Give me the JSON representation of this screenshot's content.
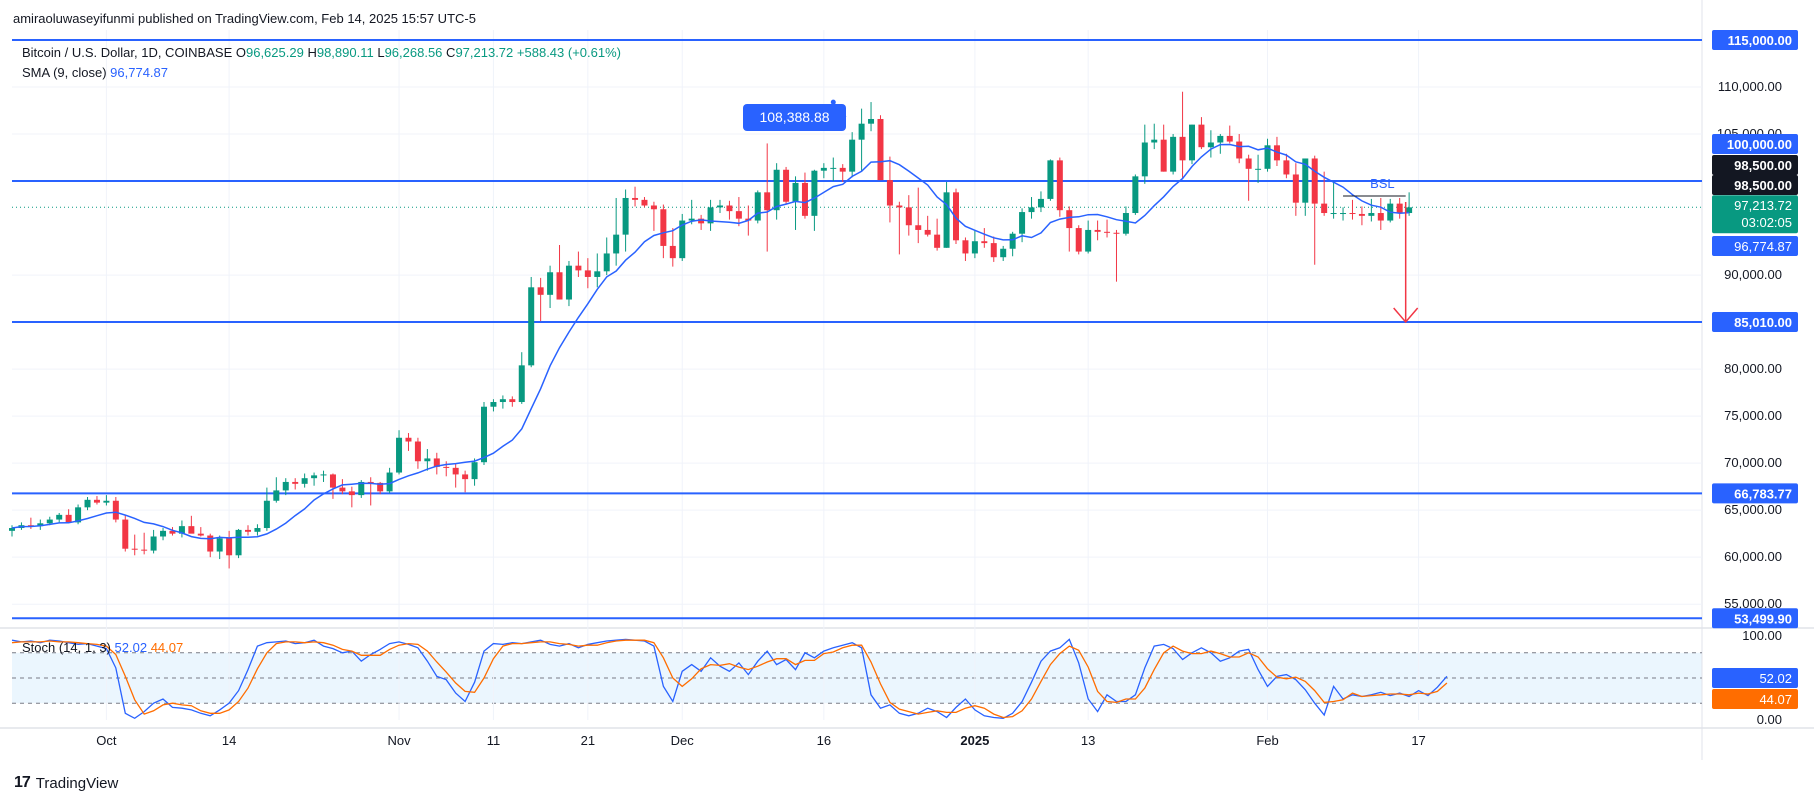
{
  "publisher": "amiraoluwaseyifunmi published on TradingView.com, Feb 14, 2025 15:57 UTC-5",
  "symbol": {
    "name": "Bitcoin / U.S. Dollar, 1D, COINBASE",
    "open_label": "O",
    "open": "96,625.29",
    "high_label": "H",
    "high": "98,890.11",
    "low_label": "L",
    "low": "96,268.56",
    "close_label": "C",
    "close": "97,213.72",
    "change": "+588.43 (+0.61%)"
  },
  "sma": {
    "label": "SMA (9, close)",
    "value": "96,774.87"
  },
  "stoch": {
    "label": "Stoch (14, 1, 3)",
    "k": "52.02",
    "d": "44.07"
  },
  "footer": {
    "brand": "TradingView"
  },
  "colors": {
    "up": "#089981",
    "down": "#f23645",
    "level": "#2962ff",
    "sma": "#2962ff",
    "stoch_k": "#2962ff",
    "stoch_d": "#ff6d00",
    "arrow": "#f23645"
  },
  "chart_data": {
    "type": "candlestick",
    "title": "Bitcoin / U.S. Dollar, 1D, COINBASE",
    "y_ticks": [
      "110,000.00",
      "105,000.00",
      "90,000.00",
      "80,000.00",
      "75,000.00",
      "70,000.00",
      "65,000.00",
      "60,000.00",
      "55,000.00"
    ],
    "x_ticks": [
      {
        "label": "Oct",
        "date": "2024-10-01"
      },
      {
        "label": "14",
        "date": "2024-10-14"
      },
      {
        "label": "Nov",
        "date": "2024-11-01"
      },
      {
        "label": "11",
        "date": "2024-11-11"
      },
      {
        "label": "21",
        "date": "2024-11-21"
      },
      {
        "label": "Dec",
        "date": "2024-12-01"
      },
      {
        "label": "16",
        "date": "2024-12-16"
      },
      {
        "label": "2025",
        "date": "2025-01-01"
      },
      {
        "label": "13",
        "date": "2025-01-13"
      },
      {
        "label": "Feb",
        "date": "2025-02-01"
      },
      {
        "label": "17",
        "date": "2025-02-17"
      }
    ],
    "levels": [
      {
        "value": 115000,
        "label": "115,000.00"
      },
      {
        "value": 100000,
        "label": "100,000.00"
      },
      {
        "value": 98500,
        "label": "98,500.00"
      },
      {
        "value": 85010,
        "label": "85,010.00"
      },
      {
        "value": 66783.77,
        "label": "66,783.77"
      },
      {
        "value": 53499.9,
        "label": "53,499.90"
      }
    ],
    "price_labels": [
      {
        "text": "97,213.72",
        "sub": "03:02:05",
        "value": 97213.72,
        "kind": "price"
      },
      {
        "text": "96,774.87",
        "value": 96774.87,
        "kind": "sma"
      }
    ],
    "annotations": {
      "peak_label": "108,388.88",
      "peak_value": 108388.88,
      "peak_date": "2024-12-17",
      "bsl_label": "BSL",
      "bsl_value": 98000,
      "bsl_from": "2025-02-09",
      "bsl_to": "2025-02-15",
      "target_value": 85010,
      "target_date": "2025-02-15"
    },
    "candles": [
      [
        62800,
        63400,
        62200,
        63100
      ],
      [
        63100,
        63700,
        62900,
        63400
      ],
      [
        63400,
        64200,
        63000,
        63300
      ],
      [
        63300,
        64000,
        62900,
        63600
      ],
      [
        63600,
        64300,
        63400,
        64000
      ],
      [
        64000,
        64700,
        63600,
        64500
      ],
      [
        64500,
        65100,
        64000,
        63700
      ],
      [
        63700,
        65600,
        63500,
        65300
      ],
      [
        65300,
        66400,
        65000,
        66100
      ],
      [
        66100,
        66500,
        65600,
        65800
      ],
      [
        65800,
        66600,
        65500,
        66000
      ],
      [
        66000,
        66400,
        63700,
        64000
      ],
      [
        64000,
        64500,
        60600,
        60900
      ],
      [
        60900,
        62400,
        60200,
        60800
      ],
      [
        60800,
        62600,
        60300,
        60700
      ],
      [
        60700,
        62900,
        60400,
        62200
      ],
      [
        62200,
        63100,
        61800,
        62800
      ],
      [
        62800,
        63200,
        62300,
        62500
      ],
      [
        62500,
        63900,
        62100,
        63300
      ],
      [
        63300,
        64400,
        62800,
        62500
      ],
      [
        62500,
        63200,
        62200,
        62300
      ],
      [
        62300,
        62500,
        60000,
        60600
      ],
      [
        60600,
        62300,
        59800,
        62000
      ],
      [
        62000,
        62800,
        58800,
        60200
      ],
      [
        60200,
        63000,
        59900,
        62900
      ],
      [
        62900,
        63400,
        62300,
        62700
      ],
      [
        62700,
        63500,
        62300,
        63100
      ],
      [
        63100,
        67400,
        62800,
        66000
      ],
      [
        66000,
        68500,
        65800,
        67100
      ],
      [
        67100,
        68400,
        66600,
        68000
      ],
      [
        68000,
        68400,
        67200,
        67800
      ],
      [
        67800,
        68900,
        67400,
        68400
      ],
      [
        68400,
        69000,
        67600,
        68700
      ],
      [
        68700,
        69200,
        68000,
        68800
      ],
      [
        68800,
        68900,
        66200,
        67400
      ],
      [
        67400,
        68300,
        66700,
        67000
      ],
      [
        67000,
        67500,
        65300,
        66600
      ],
      [
        66600,
        68200,
        66300,
        68000
      ],
      [
        68000,
        68500,
        65500,
        67900
      ],
      [
        67900,
        68000,
        66700,
        67000
      ],
      [
        67000,
        69500,
        66800,
        69000
      ],
      [
        69000,
        73500,
        68800,
        72700
      ],
      [
        72700,
        73200,
        71300,
        72300
      ],
      [
        72300,
        72700,
        69400,
        70200
      ],
      [
        70200,
        71500,
        69200,
        70500
      ],
      [
        70500,
        71100,
        68800,
        69600
      ],
      [
        69600,
        70200,
        68600,
        69500
      ],
      [
        69500,
        70000,
        67400,
        68800
      ],
      [
        68800,
        69200,
        66900,
        68300
      ],
      [
        68300,
        70500,
        67600,
        70100
      ],
      [
        70100,
        76500,
        69800,
        76000
      ],
      [
        76000,
        76800,
        75500,
        76500
      ],
      [
        76500,
        77200,
        75800,
        76800
      ],
      [
        76800,
        77100,
        76000,
        76500
      ],
      [
        76500,
        81800,
        76300,
        80400
      ],
      [
        80400,
        89800,
        80200,
        88700
      ],
      [
        88700,
        89700,
        85100,
        87900
      ],
      [
        87900,
        91000,
        86500,
        90300
      ],
      [
        90300,
        93200,
        87400,
        87400
      ],
      [
        87400,
        91500,
        86700,
        91000
      ],
      [
        91000,
        92500,
        89800,
        90500
      ],
      [
        90500,
        91800,
        88600,
        89800
      ],
      [
        89800,
        92300,
        88700,
        90400
      ],
      [
        90400,
        94000,
        90000,
        92300
      ],
      [
        92300,
        98200,
        91000,
        94300
      ],
      [
        94300,
        99100,
        92500,
        98200
      ],
      [
        98200,
        99400,
        97300,
        98000
      ],
      [
        98000,
        98300,
        97200,
        97400
      ],
      [
        97400,
        97800,
        94700,
        97000
      ],
      [
        97000,
        97500,
        91800,
        93100
      ],
      [
        93100,
        95000,
        90900,
        91800
      ],
      [
        91800,
        96500,
        91500,
        95800
      ],
      [
        95800,
        98000,
        95400,
        96000
      ],
      [
        96000,
        96400,
        94800,
        95500
      ],
      [
        95500,
        98000,
        94700,
        97200
      ],
      [
        97200,
        98000,
        96600,
        97400
      ],
      [
        97400,
        97900,
        95900,
        96800
      ],
      [
        96800,
        98300,
        95200,
        96000
      ],
      [
        96000,
        97400,
        94200,
        95800
      ],
      [
        95800,
        99000,
        95500,
        98800
      ],
      [
        98800,
        104000,
        92500,
        96900
      ],
      [
        96900,
        101900,
        95900,
        101200
      ],
      [
        101200,
        101500,
        97500,
        97800
      ],
      [
        97800,
        100500,
        94800,
        99800
      ],
      [
        99800,
        100900,
        96000,
        96300
      ],
      [
        96300,
        101200,
        94700,
        101100
      ],
      [
        101100,
        101900,
        100300,
        101400
      ],
      [
        101400,
        102500,
        100000,
        101400
      ],
      [
        101400,
        101800,
        99900,
        101000
      ],
      [
        101000,
        105200,
        100400,
        104400
      ],
      [
        104400,
        107700,
        101000,
        106100
      ],
      [
        106100,
        108400,
        105300,
        106600
      ],
      [
        106600,
        107000,
        100100,
        100100
      ],
      [
        100100,
        102600,
        95600,
        97400
      ],
      [
        97400,
        97800,
        92200,
        97200
      ],
      [
        97200,
        98500,
        94200,
        95300
      ],
      [
        95300,
        99300,
        93400,
        94800
      ],
      [
        94800,
        96300,
        94100,
        94300
      ],
      [
        94300,
        96000,
        92600,
        92900
      ],
      [
        92900,
        99900,
        92900,
        98800
      ],
      [
        98800,
        99200,
        93300,
        93700
      ],
      [
        93700,
        94000,
        91500,
        92300
      ],
      [
        92300,
        94800,
        91800,
        93600
      ],
      [
        93600,
        95000,
        92900,
        93400
      ],
      [
        93400,
        94100,
        91400,
        91900
      ],
      [
        91900,
        93100,
        91500,
        92800
      ],
      [
        92800,
        94600,
        92000,
        94400
      ],
      [
        94400,
        97100,
        93500,
        96700
      ],
      [
        96700,
        98300,
        96000,
        97200
      ],
      [
        97200,
        98900,
        96700,
        98100
      ],
      [
        98100,
        102300,
        97900,
        102200
      ],
      [
        102200,
        102500,
        96200,
        96900
      ],
      [
        96900,
        97300,
        92500,
        95000
      ],
      [
        95000,
        95300,
        92200,
        92500
      ],
      [
        92500,
        95800,
        92300,
        94800
      ],
      [
        94800,
        95800,
        93700,
        94600
      ],
      [
        94600,
        95900,
        94000,
        94500
      ],
      [
        94500,
        94800,
        89300,
        94400
      ],
      [
        94400,
        97300,
        94200,
        96600
      ],
      [
        96600,
        100700,
        96400,
        100500
      ],
      [
        100500,
        106000,
        99700,
        104100
      ],
      [
        104100,
        106100,
        103400,
        104400
      ],
      [
        104400,
        106000,
        101000,
        101000
      ],
      [
        101000,
        105000,
        100700,
        104700
      ],
      [
        104700,
        109500,
        100200,
        102200
      ],
      [
        102200,
        106000,
        101800,
        106000
      ],
      [
        106000,
        106800,
        103400,
        103600
      ],
      [
        103600,
        105400,
        102500,
        104100
      ],
      [
        104100,
        105000,
        102900,
        104800
      ],
      [
        104800,
        105900,
        104000,
        104200
      ],
      [
        104200,
        105000,
        101900,
        102400
      ],
      [
        102400,
        102800,
        97900,
        101300
      ],
      [
        101300,
        102800,
        99800,
        101300
      ],
      [
        101300,
        104500,
        101000,
        103800
      ],
      [
        103800,
        104700,
        101600,
        102200
      ],
      [
        102200,
        102900,
        100300,
        100700
      ],
      [
        100700,
        101900,
        96300,
        97700
      ],
      [
        97700,
        102400,
        96300,
        102400
      ],
      [
        102400,
        102700,
        91100,
        97600
      ],
      [
        97600,
        101000,
        96300,
        96600
      ],
      [
        96600,
        100000,
        96000,
        96600
      ],
      [
        96600,
        97200,
        95800,
        96600
      ],
      [
        96600,
        98000,
        95900,
        96500
      ],
      [
        96500,
        97300,
        95300,
        96300
      ],
      [
        96300,
        98100,
        95700,
        96600
      ],
      [
        96600,
        98200,
        94800,
        95800
      ],
      [
        95800,
        98100,
        95600,
        97600
      ],
      [
        97600,
        98200,
        96000,
        96600
      ],
      [
        96600,
        98800,
        96300,
        97200
      ]
    ],
    "stoch_k": [
      95,
      93,
      94,
      92,
      95,
      94,
      92,
      90,
      91,
      88,
      85,
      62,
      8,
      2,
      10,
      20,
      25,
      15,
      14,
      12,
      8,
      5,
      12,
      20,
      35,
      60,
      88,
      92,
      93,
      94,
      91,
      92,
      95,
      88,
      85,
      80,
      82,
      70,
      78,
      84,
      91,
      93,
      90,
      86,
      70,
      52,
      48,
      32,
      22,
      45,
      82,
      91,
      90,
      92,
      91,
      93,
      95,
      90,
      88,
      91,
      86,
      90,
      92,
      94,
      95,
      96,
      95,
      94,
      88,
      40,
      22,
      58,
      66,
      58,
      74,
      64,
      58,
      68,
      54,
      70,
      82,
      66,
      72,
      60,
      80,
      74,
      82,
      86,
      89,
      92,
      86,
      30,
      14,
      18,
      8,
      5,
      8,
      14,
      10,
      3,
      15,
      25,
      12,
      5,
      3,
      2,
      8,
      22,
      45,
      70,
      82,
      86,
      96,
      68,
      25,
      10,
      30,
      22,
      22,
      30,
      62,
      88,
      90,
      85,
      72,
      80,
      86,
      80,
      70,
      74,
      82,
      84,
      60,
      40,
      52,
      54,
      48,
      36,
      20,
      6,
      40,
      25,
      30,
      28,
      30,
      33,
      29,
      32,
      28,
      35,
      29,
      39,
      52.02
    ],
    "stoch_d": [
      92,
      93,
      93,
      93,
      94,
      93,
      93,
      92,
      91,
      90,
      88,
      78,
      52,
      24,
      7,
      11,
      18,
      20,
      18,
      17,
      11,
      8,
      8,
      12,
      22,
      38,
      61,
      80,
      91,
      93,
      93,
      92,
      93,
      92,
      89,
      84,
      82,
      77,
      77,
      77,
      84,
      89,
      91,
      90,
      82,
      69,
      57,
      44,
      34,
      33,
      50,
      73,
      88,
      91,
      91,
      92,
      93,
      93,
      91,
      90,
      88,
      89,
      89,
      92,
      94,
      95,
      95,
      95,
      92,
      74,
      50,
      40,
      49,
      61,
      66,
      65,
      67,
      63,
      60,
      64,
      69,
      73,
      73,
      66,
      71,
      71,
      79,
      81,
      86,
      89,
      89,
      69,
      43,
      21,
      13,
      10,
      7,
      9,
      11,
      9,
      9,
      14,
      17,
      14,
      7,
      3,
      4,
      11,
      25,
      46,
      66,
      79,
      88,
      83,
      63,
      34,
      22,
      21,
      25,
      25,
      38,
      60,
      80,
      88,
      82,
      79,
      79,
      82,
      79,
      75,
      75,
      80,
      75,
      61,
      51,
      49,
      51,
      46,
      35,
      21,
      22,
      24,
      32,
      28,
      29,
      30,
      31,
      31,
      30,
      32,
      31,
      34,
      44.07
    ]
  }
}
